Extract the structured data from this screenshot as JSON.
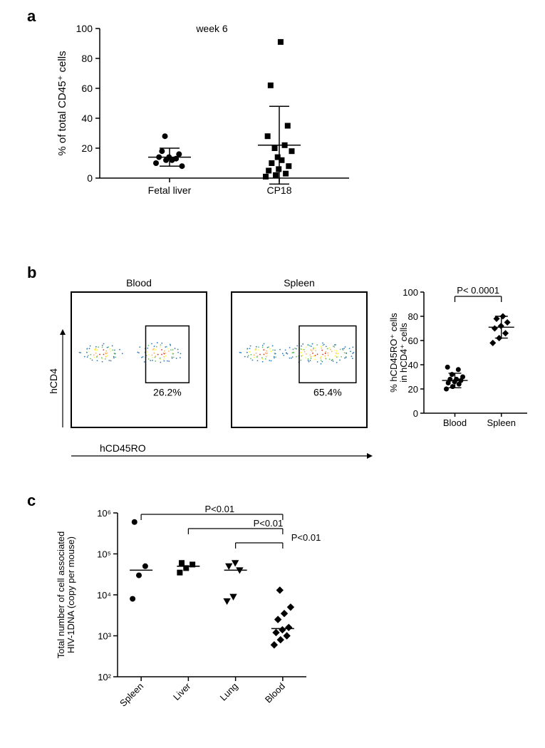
{
  "panel_a": {
    "label": "a",
    "title": "week 6",
    "ylabel": "% of total CD45⁺ cells",
    "ylim": [
      0,
      100
    ],
    "ytick_step": 20,
    "groups": [
      "Fetal liver",
      "CP18"
    ],
    "points_fetal": [
      10,
      12,
      13,
      14,
      14,
      16,
      18,
      12,
      8,
      28
    ],
    "points_cp18": [
      1,
      2,
      3,
      5,
      6,
      8,
      10,
      12,
      18,
      20,
      22,
      28,
      14,
      35,
      62,
      91
    ],
    "mean_fetal": 14,
    "sd_fetal": 6,
    "mean_cp18": 22,
    "sd_cp18": 26,
    "marker_fetal": "circle",
    "marker_cp18": "square",
    "color": "#000000",
    "bg": "#ffffff"
  },
  "panel_b": {
    "label": "b",
    "facs_titles": [
      "Blood",
      "Spleen"
    ],
    "facs_pct": [
      "26.2%",
      "65.4%"
    ],
    "xaxis": "hCD45RO",
    "yaxis": "hCD4",
    "scatter_chart": {
      "ylabel": "% hCD45RO⁺ cells\nin hCD4⁺ cells",
      "ylim": [
        0,
        100
      ],
      "ytick_step": 20,
      "groups": [
        "Blood",
        "Spleen"
      ],
      "p_label": "P< 0.0001",
      "points_blood": [
        20,
        22,
        24,
        25,
        26,
        27,
        28,
        28,
        30,
        32,
        36,
        38
      ],
      "points_spleen": [
        58,
        62,
        66,
        70,
        72,
        75,
        78,
        80
      ],
      "mean_blood": 27,
      "sd_blood": 6,
      "mean_spleen": 71,
      "sd_spleen": 9,
      "marker_blood": "circle",
      "marker_spleen": "diamond",
      "color": "#000"
    }
  },
  "panel_c": {
    "label": "c",
    "ylabel": "Total number of cell associated\nHIV-1DNA (copy per mouse)",
    "xgroups": [
      "Spleen",
      "Liver",
      "Lung",
      "Blood"
    ],
    "yticks": [
      100,
      1000,
      10000,
      100000,
      1000000
    ],
    "yticklabels": [
      "10²",
      "10³",
      "10⁴",
      "10⁵",
      "10⁶"
    ],
    "markers": {
      "Spleen": "circle",
      "Liver": "square",
      "Lung": "triangle-down",
      "Blood": "diamond"
    },
    "points": {
      "Spleen": [
        8000,
        30000,
        50000,
        600000
      ],
      "Liver": [
        35000,
        45000,
        55000,
        60000
      ],
      "Lung": [
        7000,
        9000,
        40000,
        50000,
        60000
      ],
      "Blood": [
        600,
        800,
        1000,
        1200,
        1400,
        1600,
        2500,
        3500,
        5000,
        13000
      ]
    },
    "medians": {
      "Spleen": 40000,
      "Liver": 50000,
      "Lung": 40000,
      "Blood": 1500
    },
    "p_labels": [
      "P<0.01",
      "P<0.01",
      "P<0.01"
    ],
    "color": "#000"
  }
}
